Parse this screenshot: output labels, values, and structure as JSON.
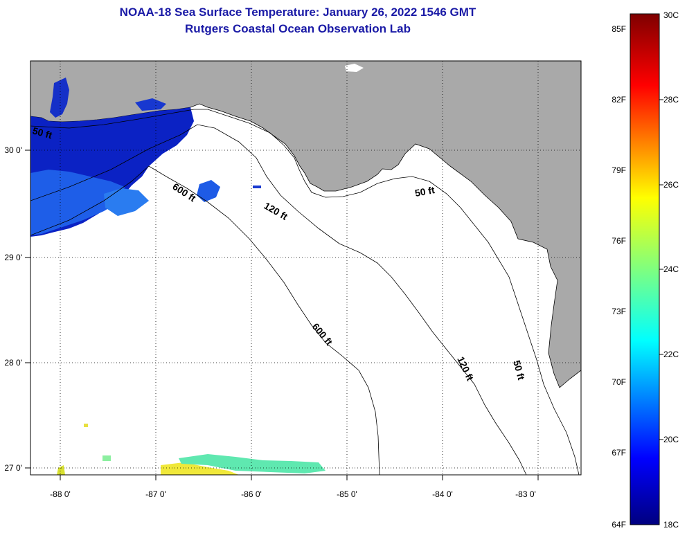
{
  "header": {
    "title": "NOAA-18 Sea Surface Temperature:  January 26, 2022 1546 GMT",
    "subtitle": "Rutgers Coastal Ocean Observation Lab"
  },
  "map": {
    "lon_labels": [
      "-88 0'",
      "-87 0'",
      "-86 0'",
      "-85 0'",
      "-84 0'",
      "-83 0'"
    ],
    "lat_labels": [
      "30 0'",
      "29 0'",
      "28 0'",
      "27 0'"
    ],
    "contours": [
      {
        "label": "50 ft"
      },
      {
        "label": "600 ft"
      },
      {
        "label": "120 ft"
      },
      {
        "label": "50 ft"
      },
      {
        "label": "600 ft"
      },
      {
        "label": "120 ft"
      },
      {
        "label": "50 ft"
      }
    ],
    "colors": {
      "land": "#a9a9a9",
      "ocean": "#ffffff",
      "cold_water": "#0a20c8"
    }
  },
  "colorbar": {
    "f_labels": [
      "85F",
      "82F",
      "79F",
      "76F",
      "73F",
      "70F",
      "67F",
      "64F"
    ],
    "c_labels": [
      "30C",
      "28C",
      "26C",
      "24C",
      "22C",
      "20C",
      "18C"
    ]
  }
}
